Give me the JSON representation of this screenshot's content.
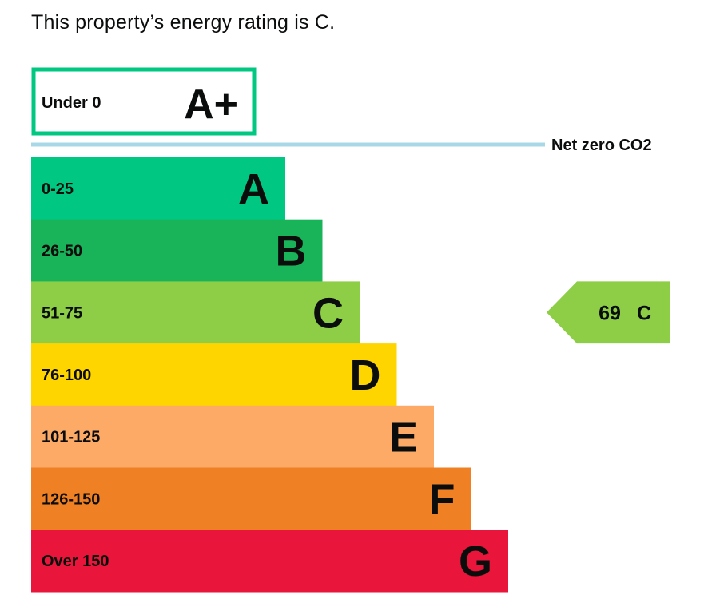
{
  "page": {
    "summary": "This property’s energy rating is C."
  },
  "chart_data": {
    "type": "bar",
    "top_band": {
      "range": "Under 0",
      "letter": "A+",
      "color": "#00c781"
    },
    "net_zero_line": {
      "label": "Net zero CO2",
      "color": "#a8d8e8"
    },
    "bands": [
      {
        "range": "0-25",
        "letter": "A",
        "color": "#00c781"
      },
      {
        "range": "26-50",
        "letter": "B",
        "color": "#19b459"
      },
      {
        "range": "51-75",
        "letter": "C",
        "color": "#8dce46"
      },
      {
        "range": "76-100",
        "letter": "D",
        "color": "#ffd500"
      },
      {
        "range": "101-125",
        "letter": "E",
        "color": "#fcaa65"
      },
      {
        "range": "126-150",
        "letter": "F",
        "color": "#ef8023"
      },
      {
        "range": "Over 150",
        "letter": "G",
        "color": "#e9153b"
      }
    ],
    "current_rating": {
      "value": 69,
      "letter": "C",
      "band_index": 2,
      "color": "#8dce46"
    }
  }
}
